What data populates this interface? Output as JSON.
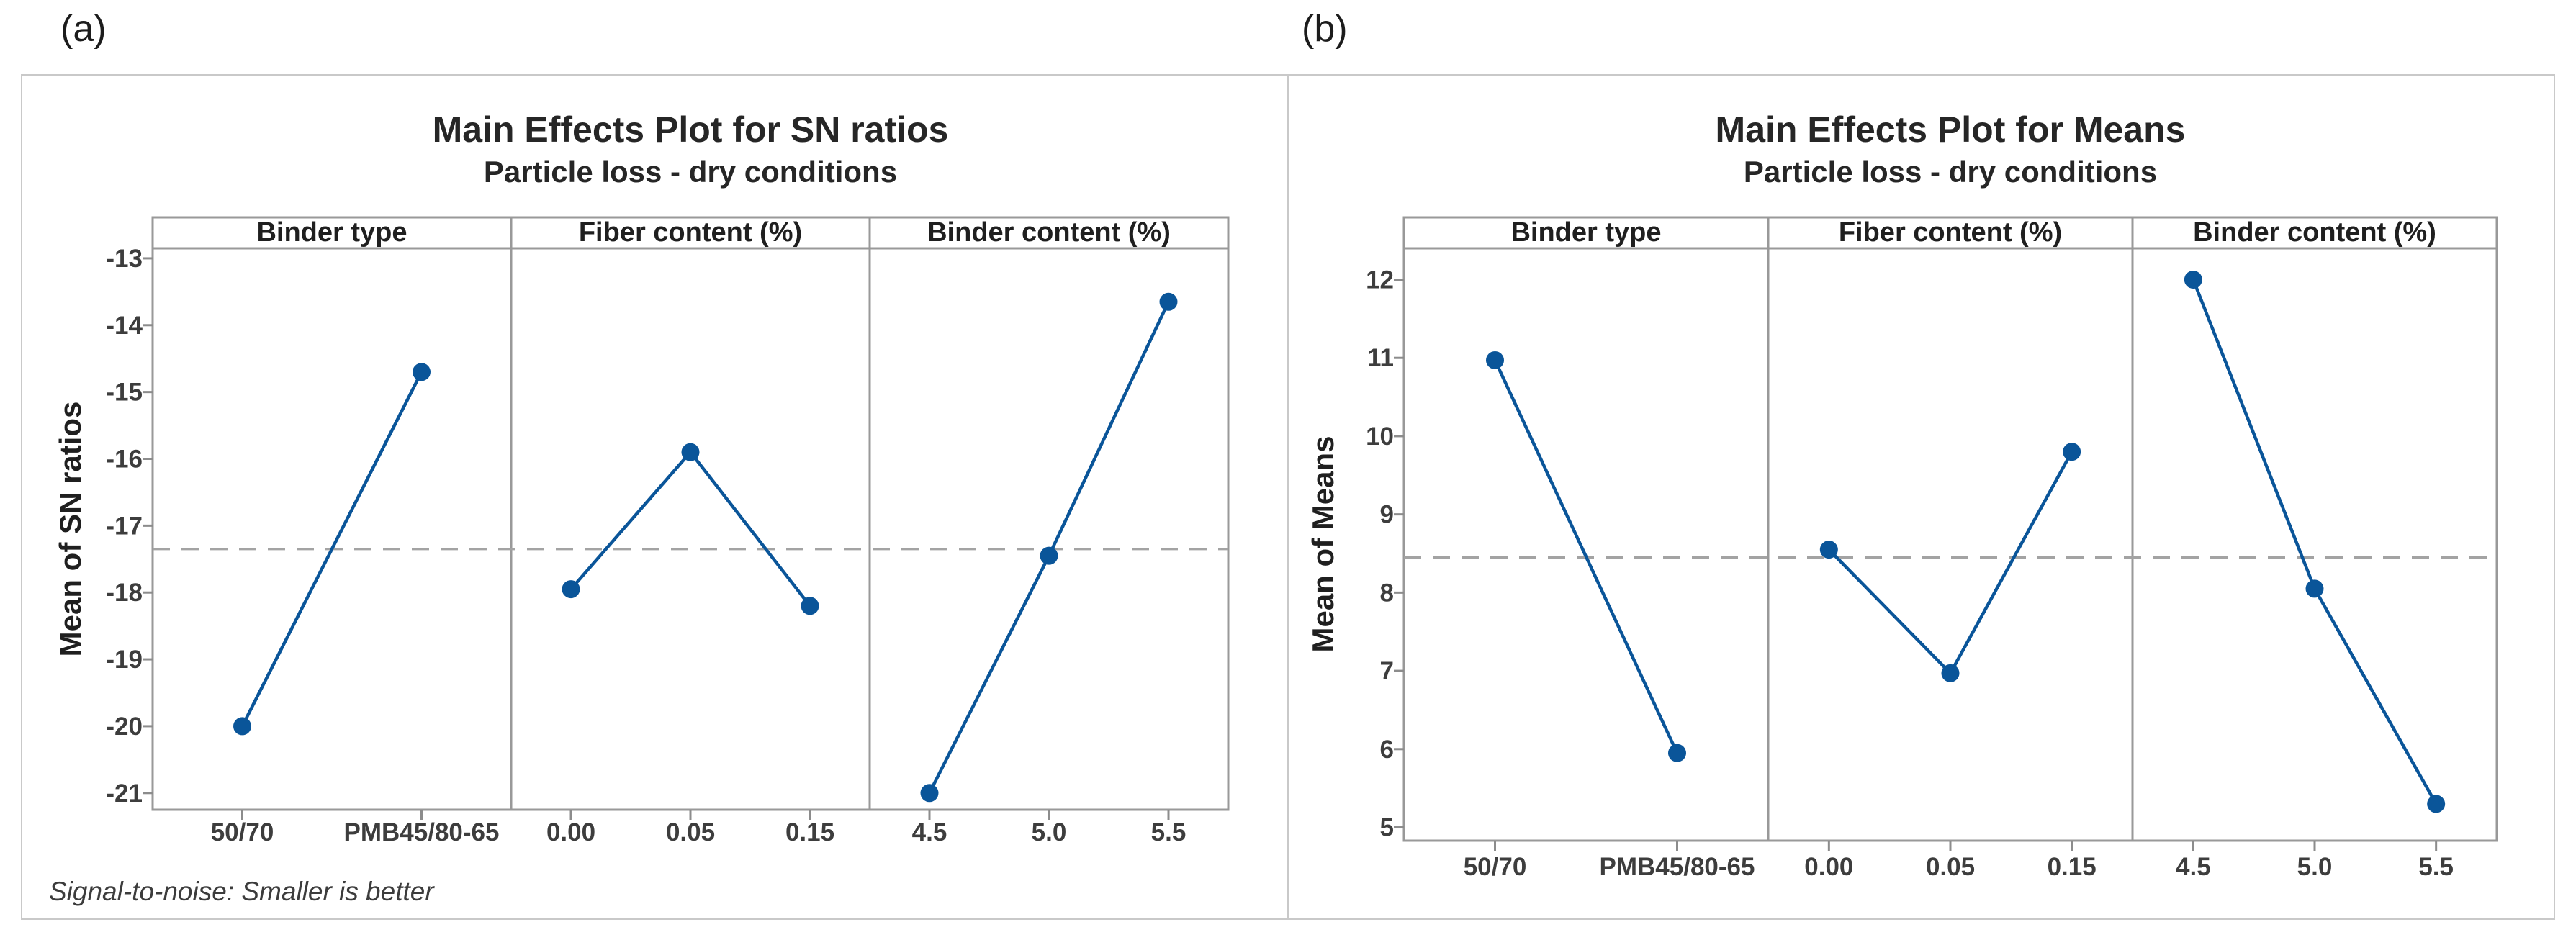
{
  "colors": {
    "series_blue": "#0a5599",
    "frame_gray": "#999999",
    "tick_gray": "#8c8c8c",
    "dashed_gray": "#a3a3a3",
    "box_border_gray": "#c9c9c9",
    "header_text": "#1f1f1f",
    "tick_text": "#3d3d3d"
  },
  "chart_data": [
    {
      "type": "line",
      "corner_label": "(a)",
      "title": "Main Effects Plot for SN ratios",
      "subtitle": "Particle loss - dry conditions",
      "ylabel": "Mean of SN ratios",
      "footnote": "Signal-to-noise: Smaller is better",
      "yticks": [
        -13,
        -14,
        -15,
        -16,
        -17,
        -18,
        -19,
        -20,
        -21
      ],
      "ylim": [
        -21.25,
        -12.85
      ],
      "mean_line": -17.35,
      "legend_position": "none",
      "grid": false,
      "panels": [
        {
          "header": "Binder type",
          "categories": [
            "50/70",
            "PMB45/80-65"
          ],
          "values": [
            -20.0,
            -14.7
          ]
        },
        {
          "header": "Fiber content (%)",
          "categories": [
            "0.00",
            "0.05",
            "0.15"
          ],
          "values": [
            -17.95,
            -15.9,
            -18.2
          ]
        },
        {
          "header": "Binder content (%)",
          "categories": [
            "4.5",
            "5.0",
            "5.5"
          ],
          "values": [
            -21.0,
            -17.45,
            -13.65
          ]
        }
      ]
    },
    {
      "type": "line",
      "corner_label": "(b)",
      "title": "Main Effects Plot for Means",
      "subtitle": "Particle loss - dry conditions",
      "ylabel": "Mean of Means",
      "footnote": "",
      "yticks": [
        12,
        11,
        10,
        9,
        8,
        7,
        6,
        5
      ],
      "ylim": [
        4.83,
        12.4
      ],
      "mean_line": 8.45,
      "legend_position": "none",
      "grid": false,
      "panels": [
        {
          "header": "Binder type",
          "categories": [
            "50/70",
            "PMB45/80-65"
          ],
          "values": [
            10.97,
            5.95
          ]
        },
        {
          "header": "Fiber content (%)",
          "categories": [
            "0.00",
            "0.05",
            "0.15"
          ],
          "values": [
            8.55,
            6.97,
            9.8
          ]
        },
        {
          "header": "Binder content (%)",
          "categories": [
            "4.5",
            "5.0",
            "5.5"
          ],
          "values": [
            12.0,
            8.05,
            5.3
          ]
        }
      ]
    }
  ]
}
